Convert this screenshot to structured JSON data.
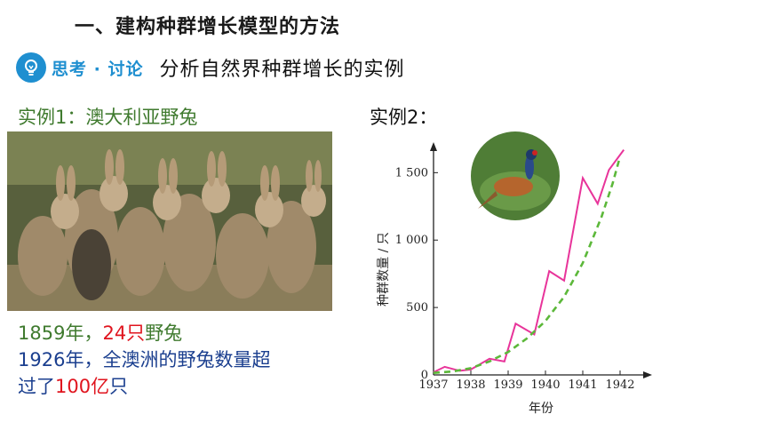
{
  "heading": "一、建构种群增长模型的方法",
  "think": {
    "label": "思考 · 讨论",
    "topic": "分析自然界种群增长的实例"
  },
  "example1": {
    "title": "实例1：澳大利亚野兔",
    "line1": {
      "year": "1859年，",
      "count": "24只",
      "animal": "野兔"
    },
    "line2": "1926年，全澳洲的野兔数量超",
    "line3": {
      "prefix": "过了",
      "count": "100亿",
      "suffix": "只"
    }
  },
  "example2": {
    "title": "实例2："
  },
  "chart_data": {
    "type": "line",
    "xlabel": "年份",
    "ylabel": "种群数量 / 只",
    "ylim": [
      0,
      1700
    ],
    "xlim": [
      1937,
      1942.5
    ],
    "yticks": [
      0,
      500,
      1000,
      1500
    ],
    "ytick_labels": [
      "0",
      "500",
      "1 000",
      "1 500"
    ],
    "xticks": [
      1937,
      1938,
      1939,
      1940,
      1941,
      1942
    ],
    "xtick_labels": [
      "1937",
      "1938",
      "1939",
      "1940",
      "1941",
      "1942"
    ],
    "series": [
      {
        "style": "solid",
        "color": "#e8349a",
        "x": [
          1937,
          1937.3,
          1937.7,
          1938,
          1938.5,
          1938.9,
          1939.2,
          1939.7,
          1940.1,
          1940.5,
          1941,
          1941.4,
          1941.7,
          1942.1
        ],
        "y": [
          20,
          60,
          30,
          40,
          120,
          100,
          380,
          300,
          770,
          700,
          1460,
          1270,
          1520,
          1670
        ]
      },
      {
        "style": "dashed",
        "color": "#5cb83a",
        "x": [
          1937,
          1937.5,
          1938,
          1938.5,
          1939,
          1939.5,
          1940,
          1940.5,
          1941,
          1941.5,
          1941.8,
          1942
        ],
        "y": [
          15,
          25,
          50,
          100,
          170,
          270,
          400,
          580,
          830,
          1170,
          1420,
          1620
        ]
      }
    ],
    "grid": false
  },
  "colors": {
    "green_text": "#3f7a2e",
    "red_text": "#e0141e",
    "blue_text": "#1b3f8f",
    "think_blue": "#1f8fd0"
  },
  "icons": {
    "think": "lightbulb-icon"
  }
}
